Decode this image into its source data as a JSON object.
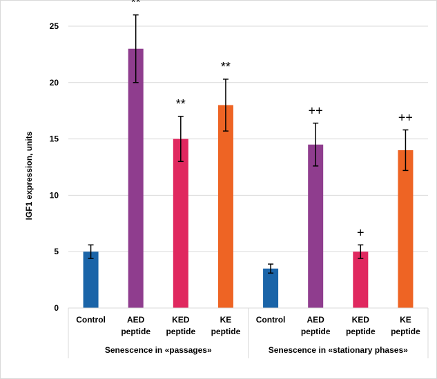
{
  "chart_data": {
    "type": "bar",
    "ylabel": "IGF1 expression, units",
    "xlabel": "",
    "title": "",
    "ylim": [
      0,
      25
    ],
    "yticks": [
      0,
      5,
      10,
      15,
      20,
      25
    ],
    "grid": "horizontal",
    "legend": "none",
    "groups": [
      {
        "label": "Senescence in «passages»",
        "categories": [
          {
            "line1": "Control",
            "line2": "",
            "value": 5.0,
            "error": 0.6,
            "annotation": "",
            "color": "#1a64a8"
          },
          {
            "line1": "AED",
            "line2": "peptide",
            "value": 23.0,
            "error": 3.0,
            "annotation": "**",
            "color": "#8f3d8e"
          },
          {
            "line1": "KED",
            "line2": "peptide",
            "value": 15.0,
            "error": 2.0,
            "annotation": "**",
            "color": "#e0285f"
          },
          {
            "line1": "KE",
            "line2": "peptide",
            "value": 18.0,
            "error": 2.3,
            "annotation": "**",
            "color": "#ee6424"
          }
        ]
      },
      {
        "label": "Senescence in «stationary phases»",
        "categories": [
          {
            "line1": "Control",
            "line2": "",
            "value": 3.5,
            "error": 0.4,
            "annotation": "",
            "color": "#1a64a8"
          },
          {
            "line1": "AED",
            "line2": "peptide",
            "value": 14.5,
            "error": 1.9,
            "annotation": "++",
            "color": "#8f3d8e"
          },
          {
            "line1": "KED",
            "line2": "peptide",
            "value": 5.0,
            "error": 0.6,
            "annotation": "+",
            "color": "#e0285f"
          },
          {
            "line1": "KE",
            "line2": "peptide",
            "value": 14.0,
            "error": 1.8,
            "annotation": "++",
            "color": "#ee6424"
          }
        ]
      }
    ]
  }
}
